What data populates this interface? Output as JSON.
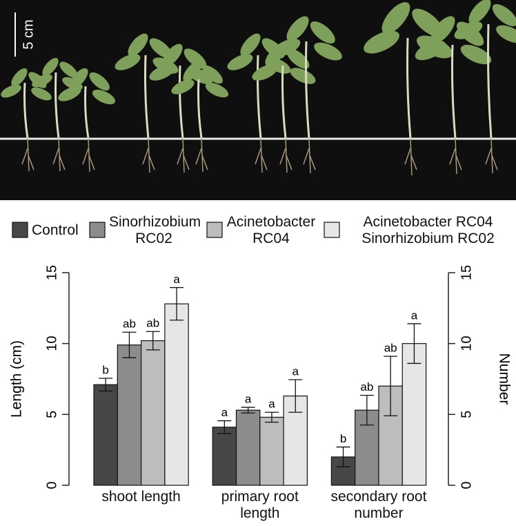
{
  "photo": {
    "scale_label": "5 cm"
  },
  "chart_data": {
    "type": "bar",
    "categories": [
      "shoot length",
      "primary root length",
      "secondary root number"
    ],
    "series": [
      {
        "name": "Control",
        "color": "#474747",
        "values": [
          7.1,
          4.1,
          2.0
        ],
        "errors": [
          0.45,
          0.45,
          0.7
        ],
        "labels": [
          "b",
          "a",
          "b"
        ]
      },
      {
        "name": "Sinorhizobium RC02",
        "color": "#8c8c8c",
        "values": [
          9.9,
          5.3,
          5.3
        ],
        "errors": [
          0.9,
          0.2,
          1.05
        ],
        "labels": [
          "ab",
          "a",
          "ab"
        ]
      },
      {
        "name": "Acinetobacter RC04",
        "color": "#bdbdbd",
        "values": [
          10.2,
          4.8,
          7.0
        ],
        "errors": [
          0.65,
          0.35,
          2.1
        ],
        "labels": [
          "ab",
          "a",
          "ab"
        ]
      },
      {
        "name": "Acinetobacter RC04 Sinorhizobium RC02",
        "color": "#e6e6e6",
        "values": [
          12.8,
          6.3,
          10.0
        ],
        "errors": [
          1.15,
          1.15,
          1.4
        ],
        "labels": [
          "a",
          "a",
          "a"
        ]
      }
    ],
    "ylabel": "Length (cm)",
    "ylim": [
      0,
      15
    ],
    "yticks": [
      0,
      5,
      10,
      15
    ],
    "y2label": "Number",
    "y2lim": [
      0,
      15
    ],
    "y2ticks": [
      0,
      5,
      10,
      15
    ]
  }
}
